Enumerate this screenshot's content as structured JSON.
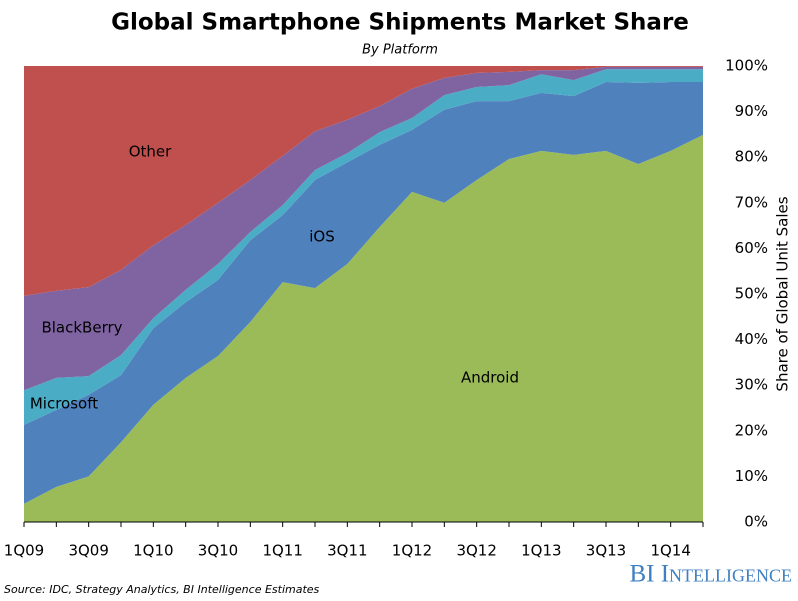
{
  "chart_data": {
    "type": "stacked_area",
    "title": "Global Smartphone Shipments Market Share",
    "subtitle": "By Platform",
    "y_axis_label": "Share of Global Unit Sales",
    "categories": [
      "1Q09",
      null,
      "3Q09",
      null,
      "1Q10",
      null,
      "3Q10",
      null,
      "1Q11",
      null,
      "3Q11",
      null,
      "1Q12",
      null,
      "3Q12",
      null,
      "1Q13",
      null,
      "3Q13",
      null,
      "1Q14",
      null
    ],
    "series": [
      {
        "name": "Android",
        "color": "#9bbb59",
        "values": [
          4,
          7.7,
          10,
          17.5,
          25.7,
          31.6,
          36.4,
          43.9,
          52.6,
          51.3,
          56.6,
          64.7,
          72.4,
          70,
          75,
          79.6,
          81.4,
          80.5,
          81.4,
          78.5,
          81.4,
          84.9
        ]
      },
      {
        "name": "iOS",
        "color": "#4f81bd",
        "values": [
          17.3,
          16.9,
          17.9,
          14.7,
          16.8,
          16.6,
          16.7,
          17.9,
          14.7,
          23.7,
          22.3,
          18,
          13.6,
          20.4,
          17.3,
          12.7,
          12.7,
          12.9,
          15.1,
          17.8,
          15.1,
          11.6
        ]
      },
      {
        "name": "Microsoft",
        "color": "#4bacc6",
        "values": [
          7.6,
          7,
          4.1,
          4.4,
          2.2,
          2.7,
          3.5,
          1.8,
          2.2,
          2.2,
          2,
          2.8,
          2.6,
          3.2,
          3.1,
          3.5,
          4.1,
          3.5,
          2.8,
          3,
          2.8,
          2.8
        ]
      },
      {
        "name": "BlackBerry",
        "color": "#8064a2",
        "values": [
          20.7,
          19.1,
          19.5,
          18.7,
          16,
          14.2,
          13.4,
          11.4,
          10.8,
          8.5,
          7.3,
          5.7,
          6.4,
          3.8,
          3.1,
          2.9,
          0.9,
          2.2,
          0.5,
          0.5,
          0.5,
          0.5
        ]
      },
      {
        "name": "Other",
        "color": "#c0504d",
        "values": [
          50.4,
          49.3,
          48.5,
          44.7,
          39.3,
          34.9,
          30,
          25,
          19.7,
          14.3,
          11.8,
          8.8,
          5,
          2.6,
          1.5,
          1.3,
          0.9,
          0.9,
          0.2,
          0.2,
          0.2,
          0.2
        ]
      }
    ],
    "ylim": [
      0,
      100
    ],
    "yticks": [
      {
        "value": 0,
        "label": "0%"
      },
      {
        "value": 10,
        "label": "10%"
      },
      {
        "value": 20,
        "label": "20%"
      },
      {
        "value": 30,
        "label": "30%"
      },
      {
        "value": 40,
        "label": "40%"
      },
      {
        "value": 50,
        "label": "50%"
      },
      {
        "value": 60,
        "label": "60%"
      },
      {
        "value": 70,
        "label": "70%"
      },
      {
        "value": 80,
        "label": "80%"
      },
      {
        "value": 90,
        "label": "90%"
      },
      {
        "value": 100,
        "label": "100%"
      }
    ],
    "source": "Source: IDC, Strategy Analytics, BI Intelligence Estimates",
    "brand": "BI Intelligence"
  }
}
